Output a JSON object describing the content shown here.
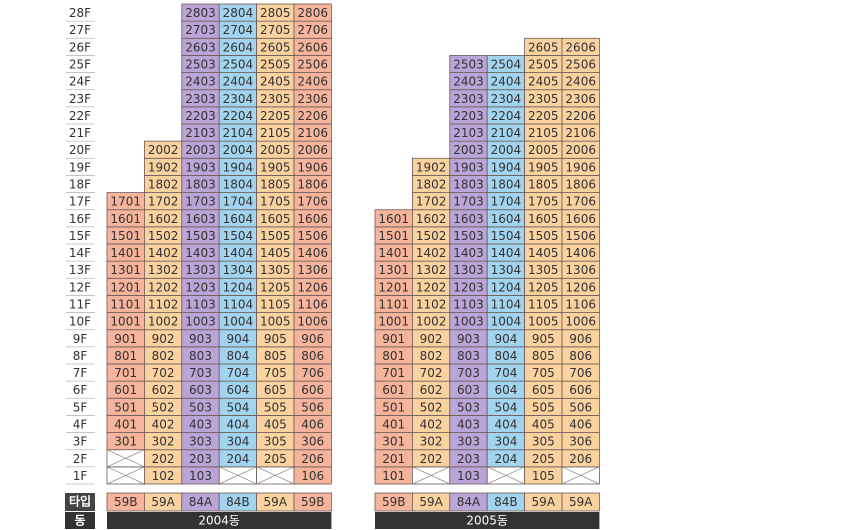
{
  "floors": [
    "1F",
    "2F",
    "3F",
    "4F",
    "5F",
    "6F",
    "7F",
    "8F",
    "9F",
    "10F",
    "11F",
    "12F",
    "13F",
    "14F",
    "15F",
    "16F",
    "17F",
    "18F",
    "19F",
    "20F",
    "21F",
    "22F",
    "23F",
    "24F",
    "25F",
    "26F",
    "27F",
    "28F"
  ],
  "row_labels": {
    "type": "타입",
    "building": "동"
  },
  "buildings": [
    {
      "name": "2004동",
      "columns": [
        {
          "type": "59B",
          "color": "#f5b49b",
          "units": [
            null,
            null,
            "301",
            "401",
            "501",
            "601",
            "701",
            "801",
            "901",
            "1001",
            "1101",
            "1201",
            "1301",
            "1401",
            "1501",
            "1601",
            "1701"
          ]
        },
        {
          "type": "59A",
          "color": "#fad29f",
          "units": [
            "102",
            "202",
            "302",
            "402",
            "502",
            "602",
            "702",
            "802",
            "902",
            "1002",
            "1102",
            "1202",
            "1302",
            "1402",
            "1502",
            "1602",
            "1702",
            "1802",
            "1902",
            "2002"
          ]
        },
        {
          "type": "84A",
          "color": "#bba5d8",
          "units": [
            "103",
            "203",
            "303",
            "403",
            "503",
            "603",
            "703",
            "803",
            "903",
            "1003",
            "1103",
            "1203",
            "1303",
            "1403",
            "1503",
            "1603",
            "1703",
            "1803",
            "1903",
            "2003",
            "2103",
            "2203",
            "2303",
            "2403",
            "2503",
            "2603",
            "2703",
            "2803"
          ]
        },
        {
          "type": "84B",
          "color": "#a2d4f0",
          "units": [
            null,
            "204",
            "304",
            "404",
            "504",
            "604",
            "704",
            "804",
            "904",
            "1004",
            "1104",
            "1204",
            "1304",
            "1404",
            "1504",
            "1604",
            "1704",
            "1804",
            "1904",
            "2004",
            "2104",
            "2204",
            "2304",
            "2404",
            "2504",
            "2604",
            "2704",
            "2804"
          ]
        },
        {
          "type": "59A",
          "color": "#fad29f",
          "units": [
            null,
            "205",
            "305",
            "405",
            "505",
            "605",
            "705",
            "805",
            "905",
            "1005",
            "1105",
            "1205",
            "1305",
            "1405",
            "1505",
            "1605",
            "1705",
            "1805",
            "1905",
            "2005",
            "2105",
            "2205",
            "2305",
            "2405",
            "2505",
            "2605",
            "2705",
            "2805"
          ]
        },
        {
          "type": "59B",
          "color": "#f5b49b",
          "units": [
            "106",
            "206",
            "306",
            "406",
            "506",
            "606",
            "706",
            "806",
            "906",
            "1006",
            "1106",
            "1206",
            "1306",
            "1406",
            "1506",
            "1606",
            "1706",
            "1806",
            "1906",
            "2006",
            "2106",
            "2206",
            "2306",
            "2406",
            "2506",
            "2606",
            "2706",
            "2806"
          ]
        }
      ]
    },
    {
      "name": "2005동",
      "columns": [
        {
          "type": "59B",
          "color": "#f5b49b",
          "units": [
            "101",
            "201",
            "301",
            "401",
            "501",
            "601",
            "701",
            "801",
            "901",
            "1001",
            "1101",
            "1201",
            "1301",
            "1401",
            "1501",
            "1601"
          ]
        },
        {
          "type": "59A",
          "color": "#fad29f",
          "units": [
            null,
            "202",
            "302",
            "402",
            "502",
            "602",
            "702",
            "802",
            "902",
            "1002",
            "1102",
            "1202",
            "1302",
            "1402",
            "1502",
            "1602",
            "1702",
            "1802",
            "1902"
          ]
        },
        {
          "type": "84A",
          "color": "#bba5d8",
          "units": [
            "103",
            "203",
            "303",
            "403",
            "503",
            "603",
            "703",
            "803",
            "903",
            "1003",
            "1103",
            "1203",
            "1303",
            "1403",
            "1503",
            "1603",
            "1703",
            "1803",
            "1903",
            "2003",
            "2103",
            "2203",
            "2303",
            "2403",
            "2503"
          ]
        },
        {
          "type": "84B",
          "color": "#a2d4f0",
          "units": [
            null,
            "204",
            "304",
            "404",
            "504",
            "604",
            "704",
            "804",
            "904",
            "1004",
            "1104",
            "1204",
            "1304",
            "1404",
            "1504",
            "1604",
            "1704",
            "1804",
            "1904",
            "2004",
            "2104",
            "2204",
            "2304",
            "2404",
            "2504"
          ]
        },
        {
          "type": "59A",
          "color": "#fad29f",
          "units": [
            "105",
            "205",
            "305",
            "405",
            "505",
            "605",
            "705",
            "805",
            "905",
            "1005",
            "1105",
            "1205",
            "1305",
            "1405",
            "1505",
            "1605",
            "1705",
            "1805",
            "1905",
            "2005",
            "2105",
            "2205",
            "2305",
            "2405",
            "2505",
            "2605"
          ]
        },
        {
          "type": "59A",
          "color": "#fad29f",
          "units": [
            null,
            "206",
            "306",
            "406",
            "506",
            "606",
            "706",
            "806",
            "906",
            "1006",
            "1106",
            "1206",
            "1306",
            "1406",
            "1506",
            "1606",
            "1706",
            "1806",
            "1906",
            "2006",
            "2106",
            "2206",
            "2306",
            "2406",
            "2506",
            "2606"
          ]
        }
      ]
    }
  ]
}
